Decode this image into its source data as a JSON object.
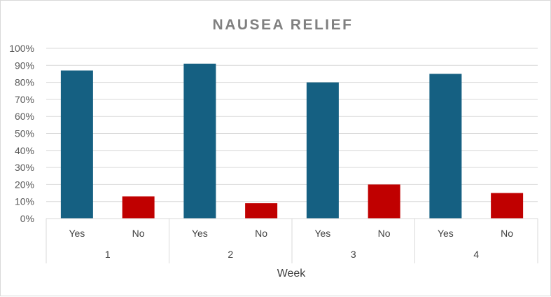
{
  "chart_data": {
    "type": "bar",
    "title": "NAUSEA RELIEF",
    "xlabel": "Week",
    "ylabel": "",
    "ylim": [
      0,
      1
    ],
    "yticks": [
      "0%",
      "10%",
      "20%",
      "30%",
      "40%",
      "50%",
      "60%",
      "70%",
      "80%",
      "90%",
      "100%"
    ],
    "groups": [
      "1",
      "2",
      "3",
      "4"
    ],
    "subcategories": [
      "Yes",
      "No"
    ],
    "colors": {
      "Yes": "#156082",
      "No": "#c00000"
    },
    "values": [
      {
        "group": "1",
        "Yes": 0.87,
        "No": 0.13
      },
      {
        "group": "2",
        "Yes": 0.91,
        "No": 0.09
      },
      {
        "group": "3",
        "Yes": 0.8,
        "No": 0.2
      },
      {
        "group": "4",
        "Yes": 0.85,
        "No": 0.15
      }
    ],
    "grid": true,
    "legend": "none"
  }
}
